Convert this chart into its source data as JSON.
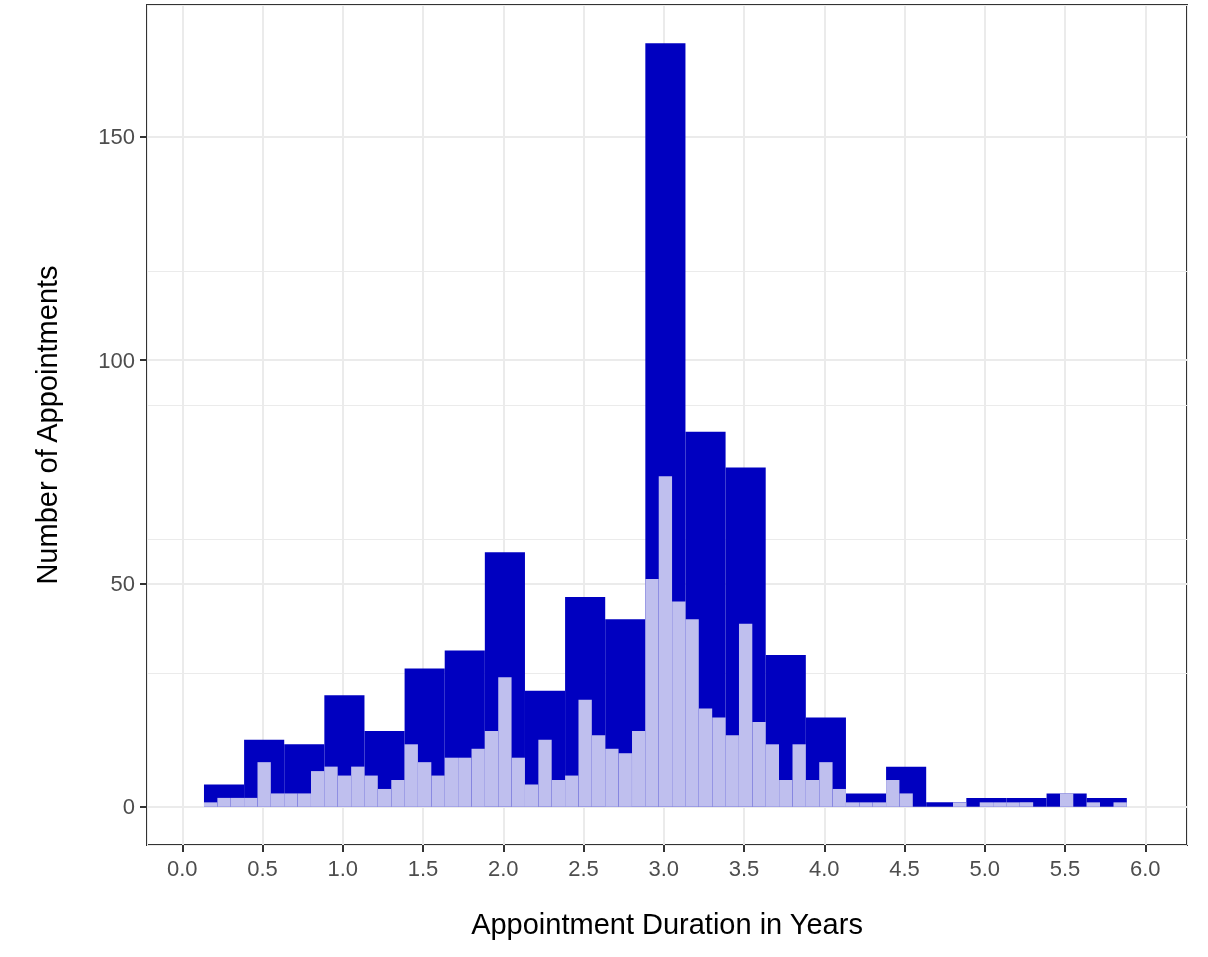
{
  "chart_data": {
    "type": "histogram",
    "xlabel": "Appointment Duration in Years",
    "ylabel": "Number of Appointments",
    "xlim": [
      -0.22,
      6.26
    ],
    "ylim": [
      -8.55,
      179.55
    ],
    "xticks": [
      {
        "value": 0,
        "label": "0.0"
      },
      {
        "value": 0.5,
        "label": "0.5"
      },
      {
        "value": 1,
        "label": "1.0"
      },
      {
        "value": 1.5,
        "label": "1.5"
      },
      {
        "value": 2,
        "label": "2.0"
      },
      {
        "value": 2.5,
        "label": "2.5"
      },
      {
        "value": 3,
        "label": "3.0"
      },
      {
        "value": 3.5,
        "label": "3.5"
      },
      {
        "value": 4,
        "label": "4.0"
      },
      {
        "value": 4.5,
        "label": "4.5"
      },
      {
        "value": 5,
        "label": "5.0"
      },
      {
        "value": 5.5,
        "label": "5.5"
      },
      {
        "value": 6,
        "label": "6.0"
      }
    ],
    "yticks": [
      0,
      50,
      100,
      150
    ],
    "grid": true,
    "bins": [
      0.135,
      0.218,
      0.302,
      0.385,
      0.468,
      0.552,
      0.635,
      0.718,
      0.802,
      0.885,
      0.968,
      1.052,
      1.135,
      1.218,
      1.302,
      1.385,
      1.468,
      1.552,
      1.635,
      1.718,
      1.802,
      1.885,
      1.968,
      2.052,
      2.135,
      2.218,
      2.302,
      2.385,
      2.468,
      2.552,
      2.635,
      2.718,
      2.802,
      2.885,
      2.968,
      3.052,
      3.135,
      3.218,
      3.302,
      3.385,
      3.468,
      3.552,
      3.635,
      3.718,
      3.802,
      3.885,
      3.968,
      4.052,
      4.135,
      4.218,
      4.302,
      4.385,
      4.468,
      4.552,
      4.635,
      4.718,
      4.802,
      4.885,
      4.968,
      5.052,
      5.135,
      5.218,
      5.302,
      5.385,
      5.468,
      5.552,
      5.635,
      5.718,
      5.802,
      5.885
    ],
    "series": [
      {
        "type": "bar",
        "color": "#0000c0",
        "x": [
          0.26,
          0.51,
          0.76,
          1.01,
          1.26,
          1.51,
          1.76,
          2.01,
          2.26,
          2.51,
          2.76,
          3.01,
          3.26,
          3.51,
          3.76,
          4.01,
          4.26,
          4.51,
          4.76,
          5.01,
          5.26,
          5.51,
          5.76
        ],
        "values": [
          5,
          15,
          14,
          25,
          17,
          31,
          35,
          57,
          26,
          47,
          42,
          171,
          84,
          76,
          34,
          20,
          3,
          9,
          1,
          2,
          2,
          3,
          2
        ]
      },
      {
        "color": "#bfbfee",
        "values": [
          1,
          2,
          2,
          2,
          10,
          3,
          3,
          3,
          8,
          9,
          7,
          9,
          7,
          4,
          6,
          14,
          10,
          7,
          11,
          11,
          13,
          17,
          29,
          11,
          5,
          15,
          6,
          7,
          24,
          16,
          13,
          12,
          17,
          51,
          74,
          46,
          42,
          22,
          20,
          16,
          41,
          19,
          14,
          6,
          14,
          6,
          10,
          4,
          1,
          1,
          1,
          6,
          3,
          0,
          0,
          0,
          1,
          0,
          1,
          1,
          1,
          1,
          0,
          0,
          3,
          0,
          1,
          0,
          1
        ]
      }
    ]
  }
}
